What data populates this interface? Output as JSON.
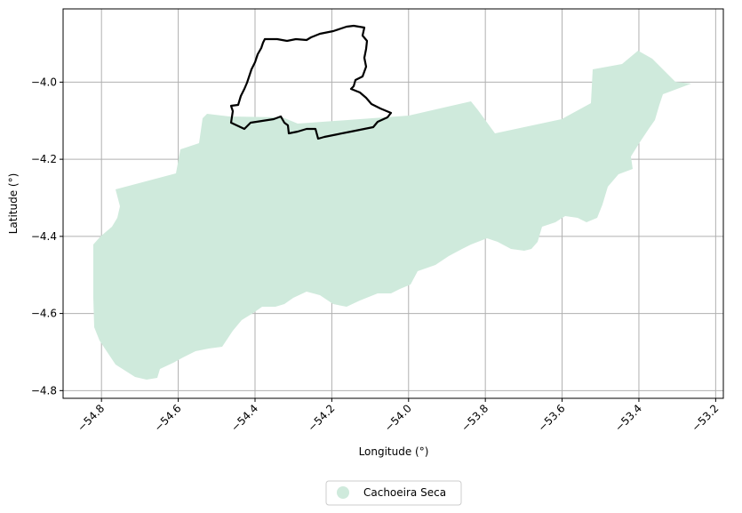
{
  "map": {
    "xlabel": "Longitude (°)",
    "ylabel": "Latitude (°)",
    "xlim": [
      -54.9,
      -53.18
    ],
    "ylim": [
      -4.82,
      -3.81
    ],
    "x_ticks": [
      -54.8,
      -54.6,
      -54.4,
      -54.2,
      -54.0,
      -53.8,
      -53.6,
      -53.4,
      -53.2
    ],
    "x_tick_labels": [
      "−54.8",
      "−54.6",
      "−54.4",
      "−54.2",
      "−54.0",
      "−53.8",
      "−53.6",
      "−53.4",
      "−53.2"
    ],
    "y_ticks": [
      -4.0,
      -4.2,
      -4.4,
      -4.6,
      -4.8
    ],
    "y_tick_labels": [
      "−4.0",
      "−4.2",
      "−4.4",
      "−4.6",
      "−4.8"
    ],
    "grid": true,
    "legend": {
      "placement": "bottom-center",
      "entries": [
        {
          "label": "Cachoeira Seca",
          "color": "#cfeadc"
        }
      ]
    },
    "colors": {
      "territory_fill": "#cfeadc",
      "outline_stroke": "#000000",
      "grid": "#b0b0b0"
    }
  }
}
